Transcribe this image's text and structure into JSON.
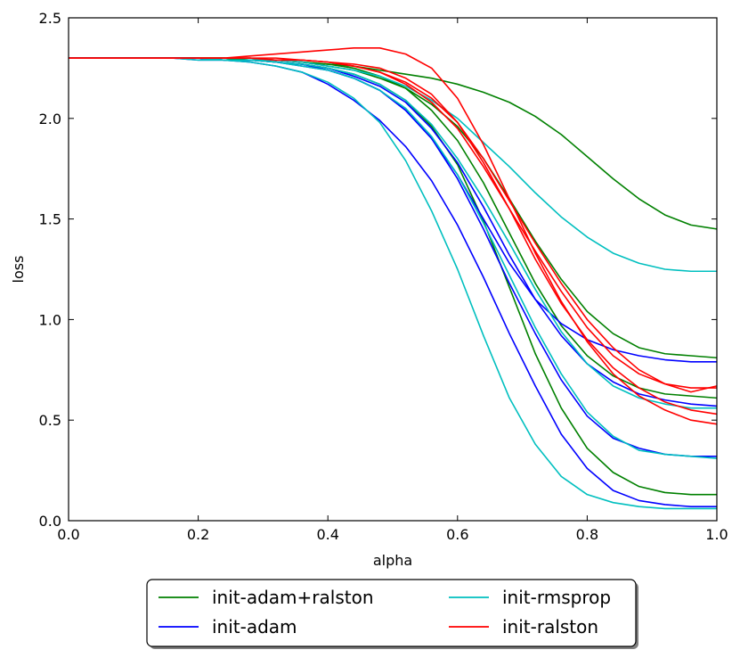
{
  "chart_data": {
    "type": "line",
    "title": "",
    "xlabel": "alpha",
    "ylabel": "loss",
    "xlim": [
      0.0,
      1.0
    ],
    "ylim": [
      0.0,
      2.5
    ],
    "xticks": [
      "0.0",
      "0.2",
      "0.4",
      "0.6",
      "0.8",
      "1.0"
    ],
    "yticks": [
      "0.0",
      "0.5",
      "1.0",
      "1.5",
      "2.0",
      "2.5"
    ],
    "grid": false,
    "legend_position": "bottom-center-outside",
    "legend": [
      {
        "name": "init-adam+ralston",
        "color": "#008000"
      },
      {
        "name": "init-adam",
        "color": "#0000ff"
      },
      {
        "name": "init-rmsprop",
        "color": "#00bfbf"
      },
      {
        "name": "init-ralston",
        "color": "#ff0000"
      }
    ],
    "x": [
      0.0,
      0.04,
      0.08,
      0.12,
      0.16,
      0.2,
      0.24,
      0.28,
      0.32,
      0.36,
      0.4,
      0.44,
      0.48,
      0.52,
      0.56,
      0.6,
      0.64,
      0.68,
      0.72,
      0.76,
      0.8,
      0.84,
      0.88,
      0.92,
      0.96,
      1.0
    ],
    "series": [
      {
        "name": "init-adam+ralston",
        "color": "#008000",
        "values": [
          2.3,
          2.3,
          2.3,
          2.3,
          2.3,
          2.3,
          2.3,
          2.3,
          2.29,
          2.28,
          2.27,
          2.26,
          2.24,
          2.22,
          2.2,
          2.17,
          2.13,
          2.08,
          2.01,
          1.92,
          1.81,
          1.7,
          1.6,
          1.52,
          1.47,
          1.45
        ]
      },
      {
        "name": "init-adam+ralston",
        "color": "#008000",
        "values": [
          2.3,
          2.3,
          2.3,
          2.3,
          2.3,
          2.3,
          2.3,
          2.29,
          2.29,
          2.28,
          2.26,
          2.24,
          2.2,
          2.15,
          2.07,
          1.96,
          1.8,
          1.6,
          1.39,
          1.2,
          1.04,
          0.93,
          0.86,
          0.83,
          0.82,
          0.81
        ]
      },
      {
        "name": "init-adam+ralston",
        "color": "#008000",
        "values": [
          2.3,
          2.3,
          2.3,
          2.3,
          2.3,
          2.3,
          2.3,
          2.29,
          2.29,
          2.28,
          2.27,
          2.25,
          2.21,
          2.15,
          2.04,
          1.89,
          1.68,
          1.43,
          1.18,
          0.97,
          0.82,
          0.72,
          0.66,
          0.63,
          0.62,
          0.61
        ]
      },
      {
        "name": "init-adam+ralston",
        "color": "#008000",
        "values": [
          2.3,
          2.3,
          2.3,
          2.3,
          2.3,
          2.3,
          2.29,
          2.29,
          2.28,
          2.27,
          2.25,
          2.22,
          2.17,
          2.09,
          1.96,
          1.77,
          1.49,
          1.16,
          0.83,
          0.56,
          0.36,
          0.24,
          0.17,
          0.14,
          0.13,
          0.13
        ]
      },
      {
        "name": "init-adam",
        "color": "#0000ff",
        "values": [
          2.3,
          2.3,
          2.3,
          2.3,
          2.3,
          2.3,
          2.29,
          2.29,
          2.28,
          2.26,
          2.24,
          2.2,
          2.14,
          2.04,
          1.9,
          1.72,
          1.5,
          1.28,
          1.1,
          0.98,
          0.9,
          0.85,
          0.82,
          0.8,
          0.79,
          0.79
        ]
      },
      {
        "name": "init-adam",
        "color": "#0000ff",
        "values": [
          2.3,
          2.3,
          2.3,
          2.3,
          2.3,
          2.3,
          2.29,
          2.29,
          2.28,
          2.27,
          2.25,
          2.21,
          2.16,
          2.08,
          1.95,
          1.78,
          1.56,
          1.32,
          1.1,
          0.92,
          0.78,
          0.69,
          0.63,
          0.6,
          0.58,
          0.57
        ]
      },
      {
        "name": "init-adam",
        "color": "#0000ff",
        "values": [
          2.3,
          2.3,
          2.3,
          2.3,
          2.3,
          2.3,
          2.29,
          2.29,
          2.28,
          2.27,
          2.24,
          2.2,
          2.14,
          2.04,
          1.9,
          1.7,
          1.45,
          1.18,
          0.93,
          0.7,
          0.52,
          0.41,
          0.36,
          0.33,
          0.32,
          0.32
        ]
      },
      {
        "name": "init-adam",
        "color": "#0000ff",
        "values": [
          2.3,
          2.3,
          2.3,
          2.3,
          2.3,
          2.29,
          2.29,
          2.28,
          2.26,
          2.23,
          2.17,
          2.09,
          1.99,
          1.86,
          1.69,
          1.47,
          1.21,
          0.93,
          0.67,
          0.43,
          0.26,
          0.15,
          0.1,
          0.08,
          0.07,
          0.07
        ]
      },
      {
        "name": "init-rmsprop",
        "color": "#00bfbf",
        "values": [
          2.3,
          2.3,
          2.3,
          2.3,
          2.3,
          2.3,
          2.29,
          2.29,
          2.29,
          2.28,
          2.26,
          2.24,
          2.21,
          2.16,
          2.09,
          2.0,
          1.88,
          1.76,
          1.63,
          1.51,
          1.41,
          1.33,
          1.28,
          1.25,
          1.24,
          1.24
        ]
      },
      {
        "name": "init-rmsprop",
        "color": "#00bfbf",
        "values": [
          2.3,
          2.3,
          2.3,
          2.3,
          2.3,
          2.3,
          2.29,
          2.29,
          2.28,
          2.27,
          2.25,
          2.22,
          2.17,
          2.09,
          1.97,
          1.8,
          1.6,
          1.38,
          1.15,
          0.94,
          0.78,
          0.67,
          0.61,
          0.58,
          0.56,
          0.56
        ]
      },
      {
        "name": "init-rmsprop",
        "color": "#00bfbf",
        "values": [
          2.3,
          2.3,
          2.3,
          2.3,
          2.3,
          2.3,
          2.29,
          2.29,
          2.28,
          2.26,
          2.24,
          2.2,
          2.14,
          2.05,
          1.91,
          1.72,
          1.48,
          1.22,
          0.96,
          0.73,
          0.54,
          0.42,
          0.35,
          0.33,
          0.32,
          0.31
        ]
      },
      {
        "name": "init-rmsprop",
        "color": "#00bfbf",
        "values": [
          2.3,
          2.3,
          2.3,
          2.3,
          2.3,
          2.29,
          2.29,
          2.28,
          2.26,
          2.23,
          2.18,
          2.1,
          1.98,
          1.79,
          1.54,
          1.25,
          0.92,
          0.61,
          0.38,
          0.22,
          0.13,
          0.09,
          0.07,
          0.06,
          0.06,
          0.06
        ]
      },
      {
        "name": "init-ralston",
        "color": "#ff0000",
        "values": [
          2.3,
          2.3,
          2.3,
          2.3,
          2.3,
          2.3,
          2.3,
          2.31,
          2.32,
          2.33,
          2.34,
          2.35,
          2.35,
          2.32,
          2.25,
          2.1,
          1.87,
          1.6,
          1.33,
          1.09,
          0.89,
          0.73,
          0.62,
          0.55,
          0.5,
          0.48
        ]
      },
      {
        "name": "init-ralston",
        "color": "#ff0000",
        "values": [
          2.3,
          2.3,
          2.3,
          2.3,
          2.3,
          2.3,
          2.3,
          2.3,
          2.3,
          2.29,
          2.28,
          2.27,
          2.25,
          2.2,
          2.12,
          1.98,
          1.78,
          1.55,
          1.3,
          1.08,
          0.9,
          0.76,
          0.66,
          0.59,
          0.55,
          0.53
        ]
      },
      {
        "name": "init-ralston",
        "color": "#ff0000",
        "values": [
          2.3,
          2.3,
          2.3,
          2.3,
          2.3,
          2.3,
          2.3,
          2.3,
          2.29,
          2.29,
          2.28,
          2.26,
          2.23,
          2.18,
          2.1,
          1.98,
          1.8,
          1.59,
          1.38,
          1.18,
          1.0,
          0.86,
          0.75,
          0.68,
          0.64,
          0.67
        ]
      },
      {
        "name": "init-ralston",
        "color": "#ff0000",
        "values": [
          2.3,
          2.3,
          2.3,
          2.3,
          2.3,
          2.3,
          2.3,
          2.3,
          2.29,
          2.29,
          2.28,
          2.26,
          2.23,
          2.17,
          2.08,
          1.95,
          1.76,
          1.55,
          1.34,
          1.14,
          0.96,
          0.82,
          0.73,
          0.68,
          0.66,
          0.66
        ]
      }
    ]
  }
}
